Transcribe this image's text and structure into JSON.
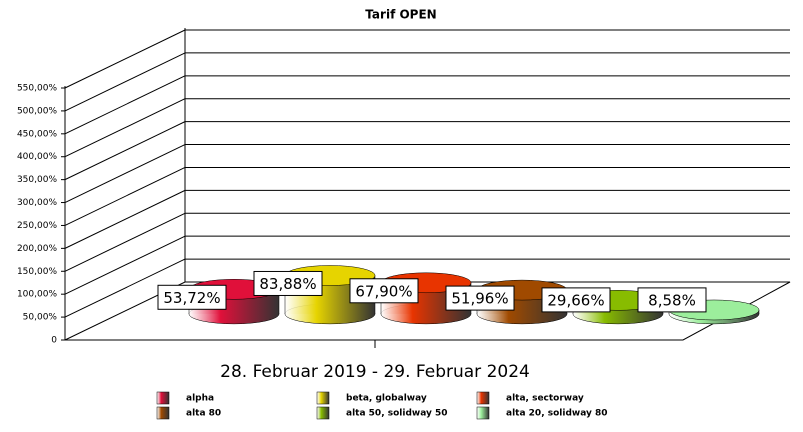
{
  "chart_data": {
    "type": "bar3d",
    "title": "Tarif OPEN",
    "categories": [
      "28. Februar 2019 - 29. Februar 2024"
    ],
    "series": [
      {
        "name": "alpha",
        "color": "#e0103a",
        "values": [
          53.72
        ],
        "value_labels": [
          "53,72%"
        ]
      },
      {
        "name": "beta, globalway",
        "color": "#e6d400",
        "values": [
          83.88
        ],
        "value_labels": [
          "83,88%"
        ]
      },
      {
        "name": "alta, sectorway",
        "color": "#e83400",
        "values": [
          67.9
        ],
        "value_labels": [
          "67,90%"
        ]
      },
      {
        "name": "alta 80",
        "color": "#a04a00",
        "values": [
          51.96
        ],
        "value_labels": [
          "51,96%"
        ]
      },
      {
        "name": "alta 50, solidway 50",
        "color": "#88bc00",
        "values": [
          29.66
        ],
        "value_labels": [
          "29,66%"
        ]
      },
      {
        "name": "alta 20, solidway 80",
        "color": "#9cee9c",
        "values": [
          8.58
        ],
        "value_labels": [
          "8,58%"
        ]
      }
    ],
    "ylim": [
      0,
      550
    ],
    "yticks": [
      0,
      {
        "value": 50,
        "label": "50,00%"
      },
      {
        "value": 100,
        "label": "100,00%"
      },
      {
        "value": 150,
        "label": "150,00%"
      },
      {
        "value": 200,
        "label": "200,00%"
      },
      {
        "value": 250,
        "label": "250,00%"
      },
      {
        "value": 300,
        "label": "300,00%"
      },
      {
        "value": 350,
        "label": "350,00%"
      },
      {
        "value": 400,
        "label": "400,00%"
      },
      {
        "value": 450,
        "label": "450,00%"
      },
      {
        "value": 500,
        "label": "500,00%"
      },
      {
        "value": 550,
        "label": "550,00%"
      }
    ],
    "grid": true
  }
}
